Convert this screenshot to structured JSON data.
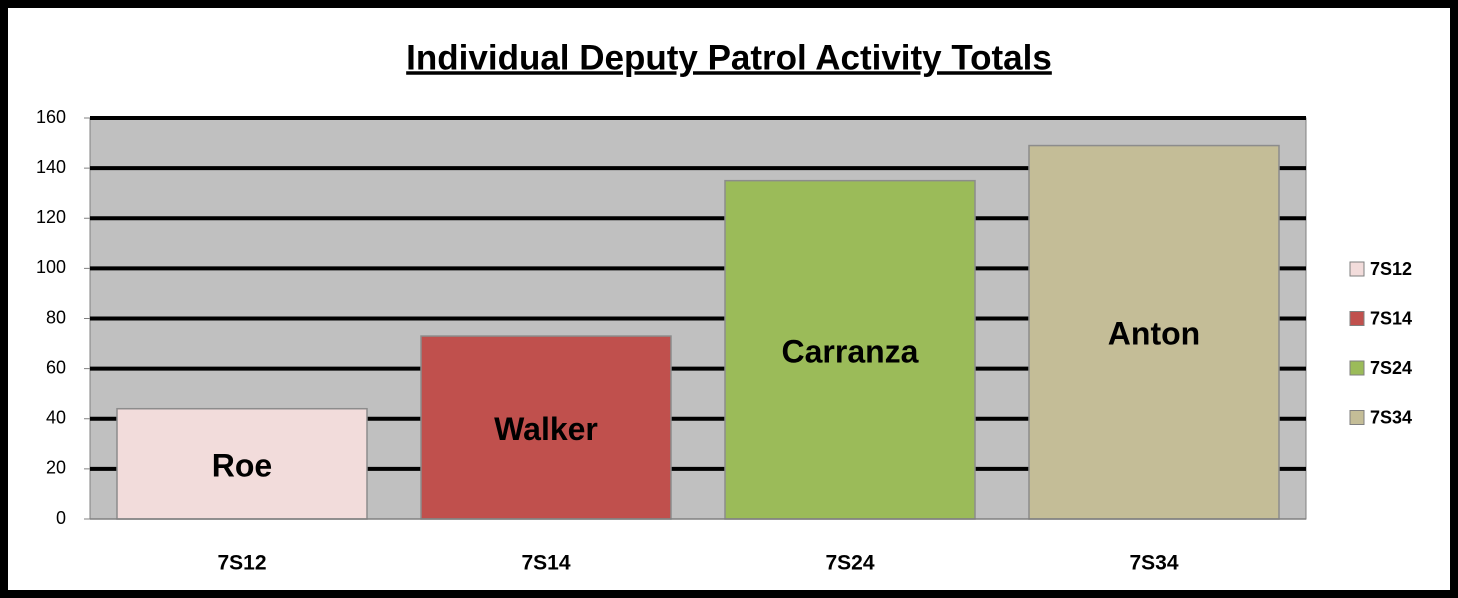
{
  "chart_data": {
    "type": "bar",
    "title": "Individual Deputy Patrol Activity Totals",
    "categories": [
      "7S12",
      "7S14",
      "7S24",
      "7S34"
    ],
    "values": [
      44,
      73,
      135,
      149
    ],
    "bar_labels": [
      "Roe",
      "Walker",
      "Carranza",
      "Anton"
    ],
    "colors": [
      "#f2dcdb",
      "#c0504d",
      "#9bbb59",
      "#c4bd97"
    ],
    "ylim": [
      0,
      160
    ],
    "yticks": [
      0,
      20,
      40,
      60,
      80,
      100,
      120,
      140,
      160
    ],
    "grid": true,
    "legend": "right"
  }
}
